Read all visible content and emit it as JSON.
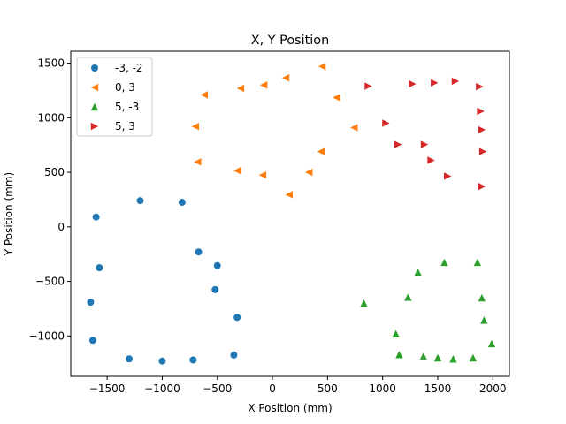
{
  "chart_data": {
    "type": "scatter",
    "title": "X, Y Position",
    "xlabel": "X Position (mm)",
    "ylabel": "Y Position (mm)",
    "xlim": [
      -1830,
      2150
    ],
    "ylim": [
      -1370,
      1610
    ],
    "xticks": [
      -1500,
      -1000,
      -500,
      0,
      500,
      1000,
      1500,
      2000
    ],
    "yticks": [
      -1000,
      -500,
      0,
      500,
      1000,
      1500
    ],
    "legend_position": "top-left",
    "grid": false,
    "series": [
      {
        "name": "-3, -2",
        "marker": "circle",
        "color": "#1f77b4",
        "points": [
          [
            -1600,
            90
          ],
          [
            -1200,
            240
          ],
          [
            -820,
            225
          ],
          [
            -670,
            -230
          ],
          [
            -500,
            -355
          ],
          [
            -1570,
            -375
          ],
          [
            -520,
            -575
          ],
          [
            -1650,
            -690
          ],
          [
            -320,
            -830
          ],
          [
            -1630,
            -1040
          ],
          [
            -1300,
            -1210
          ],
          [
            -1000,
            -1230
          ],
          [
            -720,
            -1220
          ],
          [
            -350,
            -1175
          ]
        ]
      },
      {
        "name": "0, 3",
        "marker": "triangle-left",
        "color": "#ff7f0e",
        "points": [
          [
            450,
            1470
          ],
          [
            120,
            1365
          ],
          [
            -80,
            1300
          ],
          [
            -290,
            1270
          ],
          [
            -620,
            1210
          ],
          [
            580,
            1185
          ],
          [
            -700,
            920
          ],
          [
            740,
            910
          ],
          [
            440,
            690
          ],
          [
            -680,
            595
          ],
          [
            -320,
            515
          ],
          [
            330,
            500
          ],
          [
            -90,
            475
          ],
          [
            150,
            295
          ]
        ]
      },
      {
        "name": "5, -3",
        "marker": "triangle-up",
        "color": "#2ca02c",
        "points": [
          [
            1560,
            -325
          ],
          [
            1860,
            -325
          ],
          [
            1320,
            -415
          ],
          [
            1230,
            -645
          ],
          [
            1900,
            -650
          ],
          [
            830,
            -700
          ],
          [
            1920,
            -855
          ],
          [
            1120,
            -980
          ],
          [
            1990,
            -1070
          ],
          [
            1150,
            -1170
          ],
          [
            1370,
            -1185
          ],
          [
            1500,
            -1200
          ],
          [
            1640,
            -1210
          ],
          [
            1820,
            -1200
          ]
        ]
      },
      {
        "name": "5, 3",
        "marker": "triangle-right",
        "color": "#d62728",
        "points": [
          [
            1660,
            1335
          ],
          [
            1470,
            1320
          ],
          [
            1270,
            1310
          ],
          [
            870,
            1290
          ],
          [
            1880,
            1285
          ],
          [
            1890,
            1060
          ],
          [
            1030,
            950
          ],
          [
            1900,
            890
          ],
          [
            1140,
            755
          ],
          [
            1380,
            755
          ],
          [
            1910,
            690
          ],
          [
            1440,
            610
          ],
          [
            1590,
            465
          ],
          [
            1900,
            370
          ]
        ]
      }
    ]
  }
}
